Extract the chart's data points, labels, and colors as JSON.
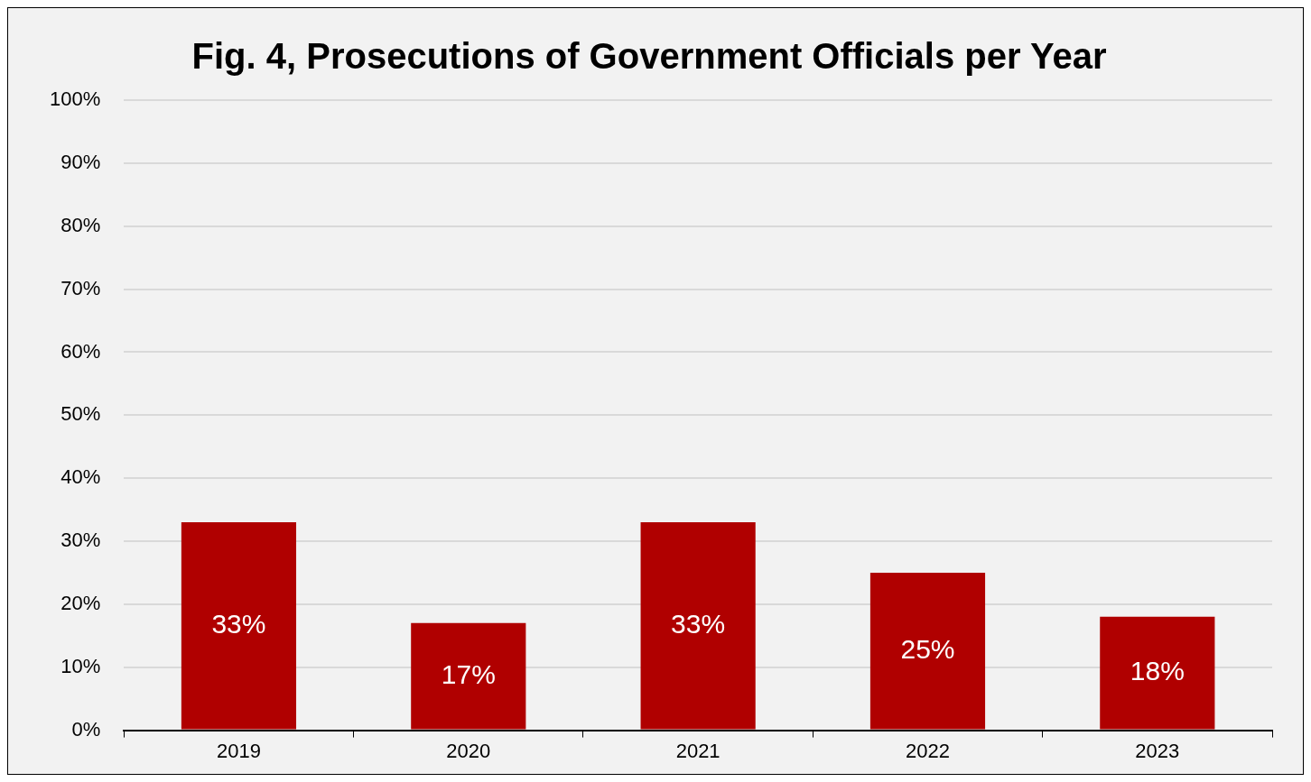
{
  "chart_data": {
    "type": "bar",
    "title": "Fig. 4, Prosecutions of Government Officials per Year",
    "categories": [
      "2019",
      "2020",
      "2021",
      "2022",
      "2023"
    ],
    "values": [
      33,
      17,
      33,
      25,
      18
    ],
    "value_labels": [
      "33%",
      "17%",
      "33%",
      "25%",
      "18%"
    ],
    "color": "#b00000",
    "ylim": [
      0,
      100
    ],
    "yticks": [
      {
        "value": 0,
        "label": "0%"
      },
      {
        "value": 10,
        "label": "10%"
      },
      {
        "value": 20,
        "label": "20%"
      },
      {
        "value": 30,
        "label": "30%"
      },
      {
        "value": 40,
        "label": "40%"
      },
      {
        "value": 50,
        "label": "50%"
      },
      {
        "value": 60,
        "label": "60%"
      },
      {
        "value": 70,
        "label": "70%"
      },
      {
        "value": 80,
        "label": "80%"
      },
      {
        "value": 90,
        "label": "90%"
      },
      {
        "value": 100,
        "label": "100%"
      }
    ],
    "grid": "y"
  }
}
